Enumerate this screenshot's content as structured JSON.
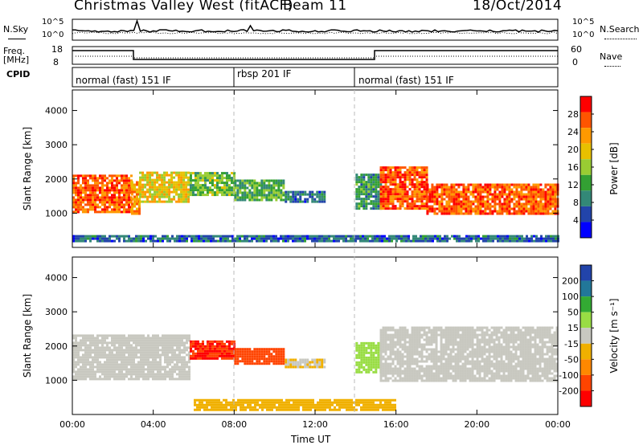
{
  "header": {
    "station": "Christmas Valley West (fitACF)",
    "beam": "Beam 11",
    "date": "18/Oct/2014"
  },
  "nsky_panel": {
    "left_label": "N.Sky",
    "right_label": "N.Search",
    "left_ticks": [
      "10^5",
      "10^0"
    ],
    "right_ticks": [
      "10^5",
      "10^0"
    ]
  },
  "freq_panel": {
    "left_label_line1": "Freq.",
    "left_label_line2": "[MHz]",
    "right_label": "Nave",
    "left_ticks": [
      "18",
      "8"
    ],
    "right_ticks": [
      "60",
      "0"
    ]
  },
  "cpid": {
    "label": "CPID",
    "segments": [
      {
        "text": "normal (fast) 151 IF",
        "start_hour": 0
      },
      {
        "text": "rbsp 201 IF",
        "start_hour": 8
      },
      {
        "text": "normal (fast) 151 IF",
        "start_hour": 14
      }
    ]
  },
  "time_axis": {
    "label": "Time UT",
    "ticks": [
      "00:00",
      "04:00",
      "08:00",
      "12:00",
      "16:00",
      "20:00",
      "00:00"
    ]
  },
  "power_panel": {
    "ylabel": "Slant Range [km]",
    "yticks": [
      "4000",
      "3000",
      "2000",
      "1000"
    ],
    "colorbar_label": "Power [dB]",
    "colorbar_ticks": [
      "28",
      "24",
      "20",
      "16",
      "12",
      "8",
      "4"
    ]
  },
  "velocity_panel": {
    "ylabel": "Slant Range [km]",
    "yticks": [
      "4000",
      "3000",
      "2000",
      "1000"
    ],
    "colorbar_label": "Velocity [m s⁻¹]",
    "colorbar_ticks": [
      "200",
      "100",
      "50",
      "15",
      "-15",
      "-50",
      "-100",
      "-200"
    ]
  },
  "colors": {
    "power_scale": [
      "#ff0000",
      "#ff5500",
      "#ff9900",
      "#e8c000",
      "#99cc33",
      "#33a033",
      "#338877",
      "#2244aa",
      "#0000ff"
    ],
    "velocity_scale": [
      "#2244aa",
      "#227799",
      "#33aa33",
      "#99dd44",
      "#c8c8c0",
      "#f0b000",
      "#ff8800",
      "#ff4400",
      "#ff0000"
    ]
  },
  "chart_data": {
    "type": "heatmap",
    "x_range_hours": [
      0,
      24
    ],
    "y_range_km": [
      0,
      4600
    ],
    "power_db_range": [
      0,
      32
    ],
    "velocity_range": [
      -250,
      250
    ],
    "power_regions": [
      {
        "t0": 0.0,
        "t1": 2.9,
        "r0": 1000,
        "r1": 2100,
        "power": 28
      },
      {
        "t0": 2.9,
        "t1": 3.3,
        "r0": 950,
        "r1": 1900,
        "power": 24
      },
      {
        "t0": 3.3,
        "t1": 5.8,
        "r0": 1300,
        "r1": 2150,
        "power": 20
      },
      {
        "t0": 5.8,
        "t1": 8.0,
        "r0": 1500,
        "r1": 2150,
        "power": 14
      },
      {
        "t0": 8.0,
        "t1": 10.5,
        "r0": 1350,
        "r1": 1950,
        "power": 12
      },
      {
        "t0": 10.5,
        "t1": 12.5,
        "r0": 1300,
        "r1": 1600,
        "power": 6
      },
      {
        "t0": 14.0,
        "t1": 15.2,
        "r0": 1100,
        "r1": 2100,
        "power": 10
      },
      {
        "t0": 15.2,
        "t1": 17.5,
        "r0": 1100,
        "r1": 2300,
        "power": 28
      },
      {
        "t0": 17.5,
        "t1": 24.0,
        "r0": 950,
        "r1": 1800,
        "power": 28
      },
      {
        "t0": 0.0,
        "t1": 24.0,
        "r0": 150,
        "r1": 300,
        "power": 6
      }
    ],
    "velocity_regions": [
      {
        "t0": 0.0,
        "t1": 5.8,
        "r0": 1000,
        "r1": 2300,
        "velocity": 0
      },
      {
        "t0": 5.8,
        "t1": 8.0,
        "r0": 1600,
        "r1": 2150,
        "velocity": -220
      },
      {
        "t0": 8.0,
        "t1": 10.5,
        "r0": 1450,
        "r1": 1900,
        "velocity": -180
      },
      {
        "t0": 10.5,
        "t1": 12.5,
        "r0": 1350,
        "r1": 1600,
        "velocity": -30
      },
      {
        "t0": 14.0,
        "t1": 15.2,
        "r0": 1200,
        "r1": 2100,
        "velocity": 60
      },
      {
        "t0": 15.2,
        "t1": 24.0,
        "r0": 950,
        "r1": 2500,
        "velocity": 0
      },
      {
        "t0": 6.0,
        "t1": 16.0,
        "r0": 100,
        "r1": 400,
        "velocity": -60
      }
    ]
  }
}
